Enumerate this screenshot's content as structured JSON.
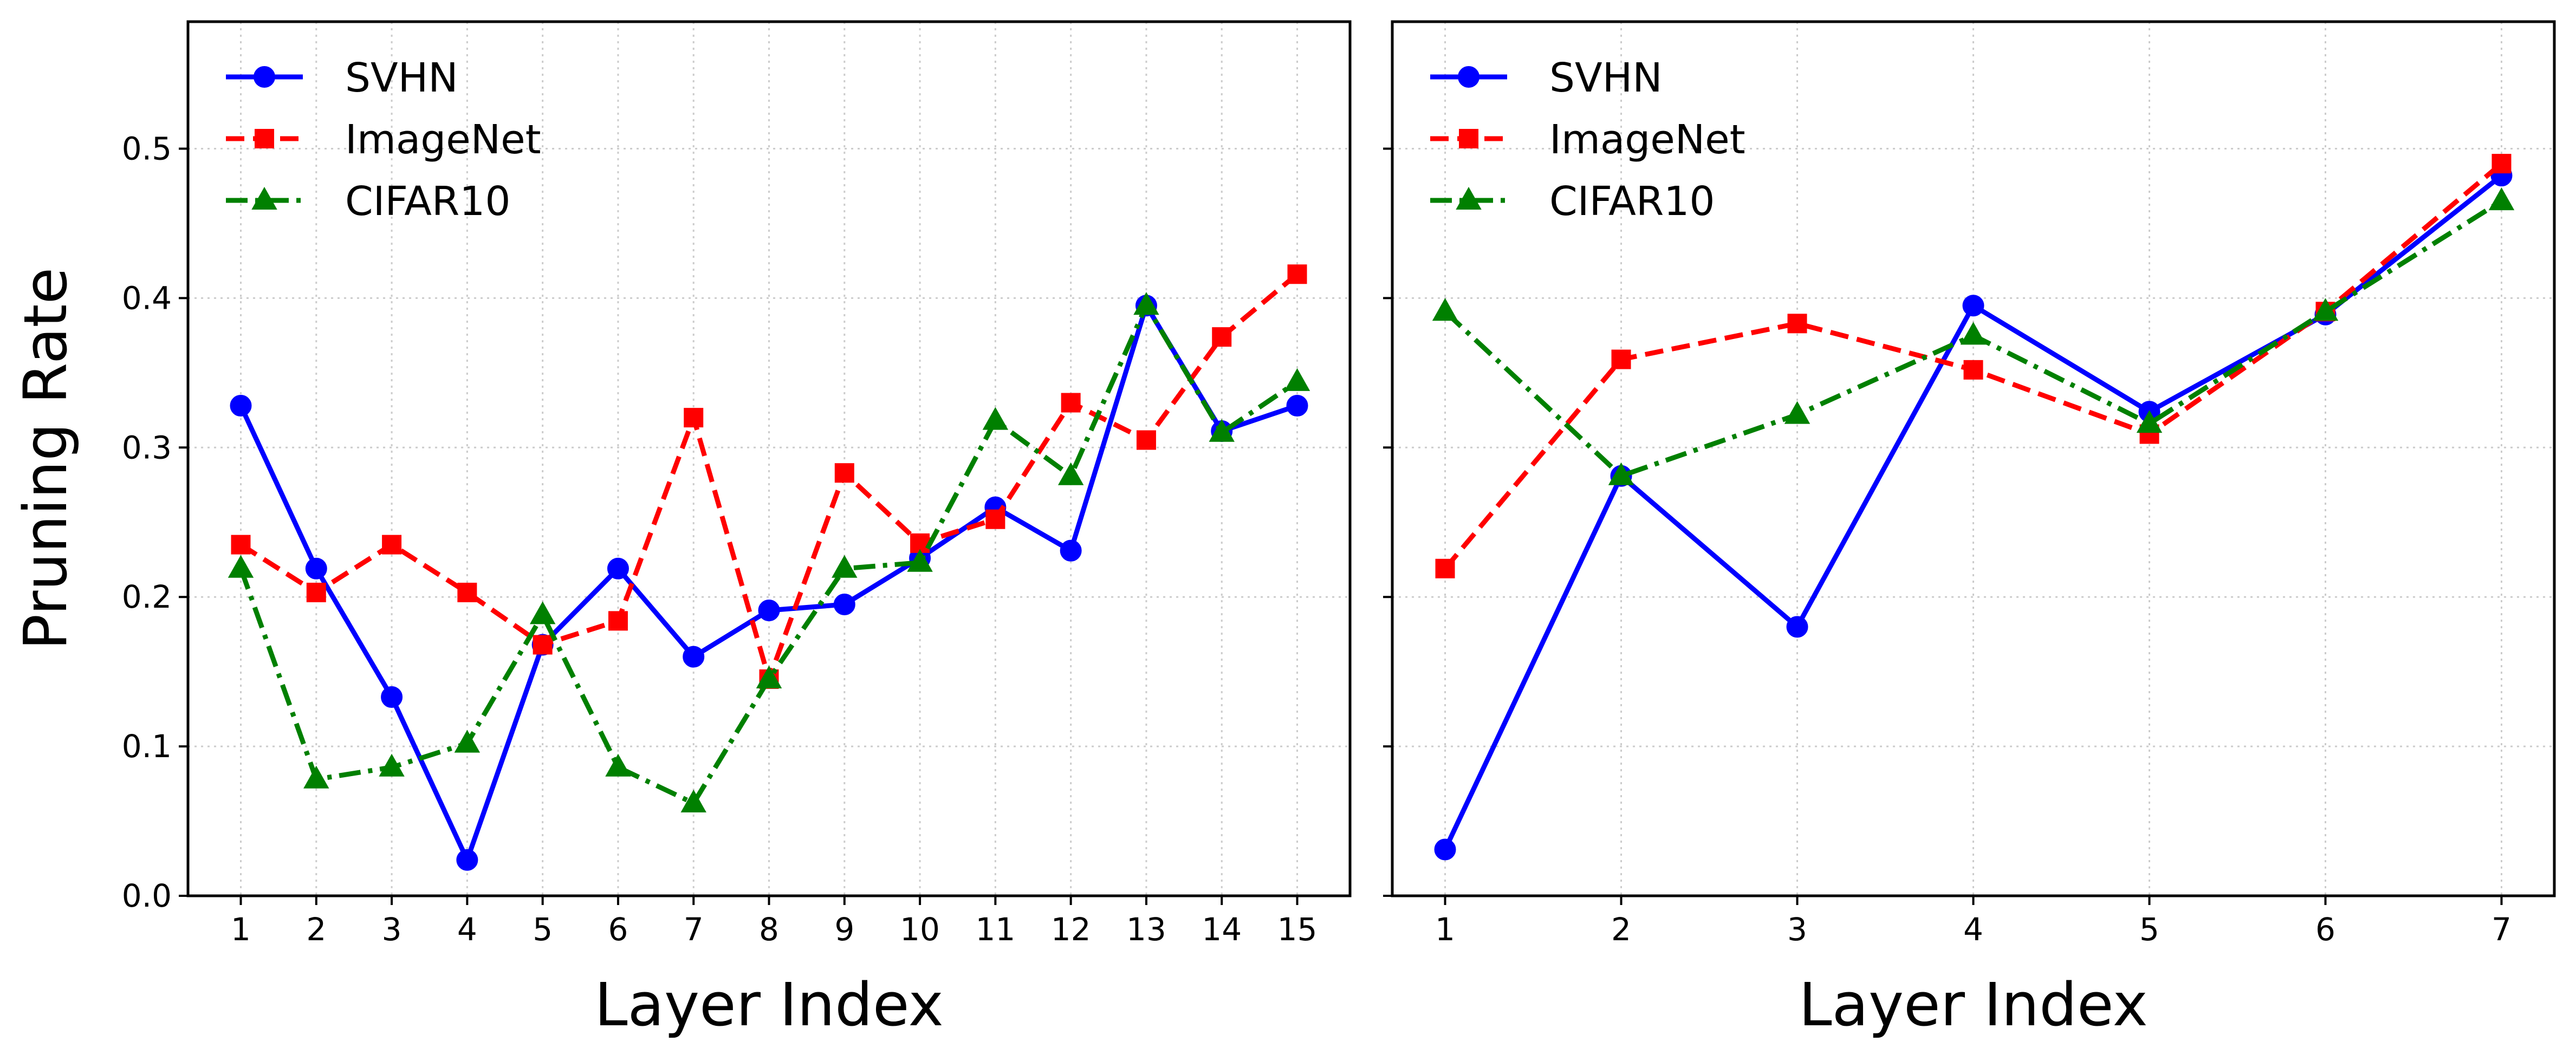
{
  "chart_data": [
    {
      "type": "line",
      "title": "",
      "xlabel": "Layer Index",
      "ylabel": "Pruning Rate",
      "x": [
        1,
        2,
        3,
        4,
        5,
        6,
        7,
        8,
        9,
        10,
        11,
        12,
        13,
        14,
        15
      ],
      "xlim": [
        0.3,
        15.7
      ],
      "ylim": [
        0.0,
        0.585
      ],
      "yticks": [
        0.0,
        0.1,
        0.2,
        0.3,
        0.4,
        0.5
      ],
      "ytick_labels": [
        "0.0",
        "0.1",
        "0.2",
        "0.3",
        "0.4",
        "0.5"
      ],
      "grid": true,
      "legend_position": "top-left",
      "series": [
        {
          "name": "SVHN",
          "color": "#0000ff",
          "marker": "circle",
          "linestyle": "solid",
          "values": [
            0.328,
            0.219,
            0.133,
            0.024,
            0.168,
            0.219,
            0.16,
            0.191,
            0.195,
            0.226,
            0.26,
            0.231,
            0.395,
            0.311,
            0.328
          ]
        },
        {
          "name": "ImageNet",
          "color": "#ff0000",
          "marker": "square",
          "linestyle": "dashed",
          "values": [
            0.235,
            0.203,
            0.235,
            0.203,
            0.168,
            0.184,
            0.32,
            0.145,
            0.283,
            0.236,
            0.252,
            0.33,
            0.305,
            0.374,
            0.416
          ]
        },
        {
          "name": "CIFAR10",
          "color": "#008000",
          "marker": "triangle",
          "linestyle": "dashdot",
          "values": [
            0.219,
            0.078,
            0.086,
            0.102,
            0.188,
            0.086,
            0.062,
            0.145,
            0.219,
            0.223,
            0.318,
            0.281,
            0.395,
            0.31,
            0.344
          ]
        }
      ]
    },
    {
      "type": "line",
      "title": "",
      "xlabel": "Layer Index",
      "ylabel": "",
      "x": [
        1,
        2,
        3,
        4,
        5,
        6,
        7
      ],
      "xlim": [
        0.7,
        7.3
      ],
      "ylim": [
        0.0,
        0.585
      ],
      "grid": true,
      "legend_position": "top-left",
      "series": [
        {
          "name": "SVHN",
          "color": "#0000ff",
          "marker": "circle",
          "linestyle": "solid",
          "values": [
            0.031,
            0.281,
            0.18,
            0.395,
            0.324,
            0.389,
            0.482
          ]
        },
        {
          "name": "ImageNet",
          "color": "#ff0000",
          "marker": "square",
          "linestyle": "dashed",
          "values": [
            0.219,
            0.359,
            0.383,
            0.352,
            0.309,
            0.391,
            0.49
          ]
        },
        {
          "name": "CIFAR10",
          "color": "#008000",
          "marker": "triangle",
          "linestyle": "dashdot",
          "values": [
            0.391,
            0.281,
            0.322,
            0.375,
            0.316,
            0.391,
            0.465
          ]
        }
      ]
    }
  ]
}
